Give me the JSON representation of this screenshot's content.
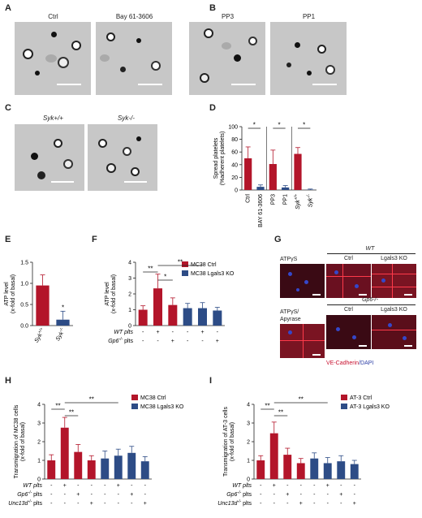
{
  "panels": {
    "A": {
      "label": "A",
      "images": [
        "Ctrl",
        "Bay 61-3606"
      ]
    },
    "B": {
      "label": "B",
      "images": [
        "PP3",
        "PP1"
      ]
    },
    "C": {
      "label": "C",
      "images": [
        "Syk+/+",
        "Syk-/-"
      ]
    },
    "D": {
      "label": "D"
    },
    "E": {
      "label": "E"
    },
    "F": {
      "label": "F"
    },
    "G": {
      "label": "G",
      "row1_left": "ATPγS",
      "row1_group": "WT",
      "row1_cols": [
        "Ctrl",
        "Lgals3 KO"
      ],
      "row2_left_1": "ATPγS/",
      "row2_left_2": "Apyrase",
      "row2_group": "Gp6-/-",
      "row2_cols": [
        "Ctrl",
        "Lgals3 KO"
      ],
      "legend_red": "VE-Cadherin",
      "legend_blue": "/DAPI"
    },
    "H": {
      "label": "H"
    },
    "I": {
      "label": "I"
    }
  },
  "chart_data": [
    {
      "id": "D",
      "type": "bar",
      "categories": [
        "Ctrl",
        "BAY 61-3606",
        "PP3",
        "PP1",
        "Syk+/+",
        "Syk-/-"
      ],
      "values": [
        50,
        5,
        41,
        4,
        57,
        0.5
      ],
      "errors": [
        18,
        3,
        22,
        3,
        10,
        1
      ],
      "colors": [
        "#b3152a",
        "#2d4c86",
        "#b3152a",
        "#2d4c86",
        "#b3152a",
        "#2d4c86"
      ],
      "ylabel": "Spread platelets\n(%adherent platelets)",
      "ylim": [
        0,
        100
      ],
      "yticks": [
        0,
        20,
        40,
        60,
        80,
        100
      ],
      "significance": [
        "*",
        "*",
        "*"
      ]
    },
    {
      "id": "E",
      "type": "bar",
      "categories": [
        "Syk+/+",
        "Syk-/-"
      ],
      "values": [
        0.95,
        0.14
      ],
      "errors": [
        0.25,
        0.2
      ],
      "colors": [
        "#b3152a",
        "#2d4c86"
      ],
      "ylabel": "ATP level\n(x-fold of basal)",
      "ylim": [
        0,
        1.5
      ],
      "yticks": [
        0.0,
        0.5,
        1.0,
        1.5
      ],
      "significance": [
        "*"
      ]
    },
    {
      "id": "F",
      "type": "bar",
      "ylabel": "ATP level\n(x-fold of basal)",
      "ylim": [
        0,
        4
      ],
      "yticks": [
        0,
        1,
        2,
        3,
        4
      ],
      "values": [
        1.0,
        2.35,
        1.3,
        1.1,
        1.1,
        0.95
      ],
      "errors": [
        0.25,
        0.9,
        0.45,
        0.3,
        0.35,
        0.2
      ],
      "colors": [
        "#b3152a",
        "#b3152a",
        "#b3152a",
        "#2d4c86",
        "#2d4c86",
        "#2d4c86"
      ],
      "legend": [
        {
          "name": "MC38 Ctrl",
          "color": "#b3152a"
        },
        {
          "name": "MC38 Lgals3 KO",
          "color": "#2d4c86"
        }
      ],
      "condition_rows": [
        {
          "label": "WT plts",
          "marks": [
            "-",
            "+",
            "-",
            "-",
            "+",
            "-"
          ]
        },
        {
          "label": "Gp6-/- plts",
          "marks": [
            "-",
            "-",
            "+",
            "-",
            "-",
            "+"
          ]
        }
      ],
      "significance": [
        "**",
        "*",
        "**"
      ]
    },
    {
      "id": "H",
      "type": "bar",
      "ylabel": "Transmigration of MC38 cells\n(x-fold of basal)",
      "ylim": [
        0,
        4
      ],
      "yticks": [
        0,
        1,
        2,
        3,
        4
      ],
      "values": [
        1.0,
        2.75,
        1.45,
        1.0,
        1.1,
        1.25,
        1.4,
        0.95
      ],
      "errors": [
        0.3,
        0.55,
        0.4,
        0.25,
        0.4,
        0.35,
        0.35,
        0.25
      ],
      "colors": [
        "#b3152a",
        "#b3152a",
        "#b3152a",
        "#b3152a",
        "#2d4c86",
        "#2d4c86",
        "#2d4c86",
        "#2d4c86"
      ],
      "legend": [
        {
          "name": "MC38 Ctrl",
          "color": "#b3152a"
        },
        {
          "name": "MC38 Lgals3 KO",
          "color": "#2d4c86"
        }
      ],
      "condition_rows": [
        {
          "label": "WT plts",
          "marks": [
            "-",
            "+",
            "-",
            "-",
            "-",
            "+",
            "-",
            "-"
          ]
        },
        {
          "label": "Gp6-/- plts",
          "marks": [
            "-",
            "-",
            "+",
            "-",
            "-",
            "-",
            "+",
            "-"
          ]
        },
        {
          "label": "Unc13d-/- plts",
          "marks": [
            "-",
            "-",
            "-",
            "+",
            "-",
            "-",
            "-",
            "+"
          ]
        }
      ],
      "significance": [
        "**",
        "**",
        "**"
      ]
    },
    {
      "id": "I",
      "type": "bar",
      "ylabel": "Transmigration of AT-3 cells\n(x-fold of basal)",
      "ylim": [
        0,
        4
      ],
      "yticks": [
        0,
        1,
        2,
        3,
        4
      ],
      "values": [
        1.0,
        2.45,
        1.3,
        0.85,
        1.1,
        0.85,
        0.95,
        0.8
      ],
      "errors": [
        0.25,
        0.6,
        0.35,
        0.25,
        0.3,
        0.3,
        0.3,
        0.2
      ],
      "colors": [
        "#b3152a",
        "#b3152a",
        "#b3152a",
        "#b3152a",
        "#2d4c86",
        "#2d4c86",
        "#2d4c86",
        "#2d4c86"
      ],
      "legend": [
        {
          "name": "AT-3 Ctrl",
          "color": "#b3152a"
        },
        {
          "name": "AT-3 Lgals3 KO",
          "color": "#2d4c86"
        }
      ],
      "condition_rows": [
        {
          "label": "WT plts",
          "marks": [
            "-",
            "+",
            "-",
            "-",
            "-",
            "+",
            "-",
            "-"
          ]
        },
        {
          "label": "Gp6-/- plts",
          "marks": [
            "-",
            "-",
            "+",
            "-",
            "-",
            "-",
            "+",
            "-"
          ]
        },
        {
          "label": "Unc13d-/- plts",
          "marks": [
            "-",
            "-",
            "-",
            "+",
            "-",
            "-",
            "-",
            "+"
          ]
        }
      ],
      "significance": [
        "**",
        "**",
        "**"
      ]
    }
  ]
}
